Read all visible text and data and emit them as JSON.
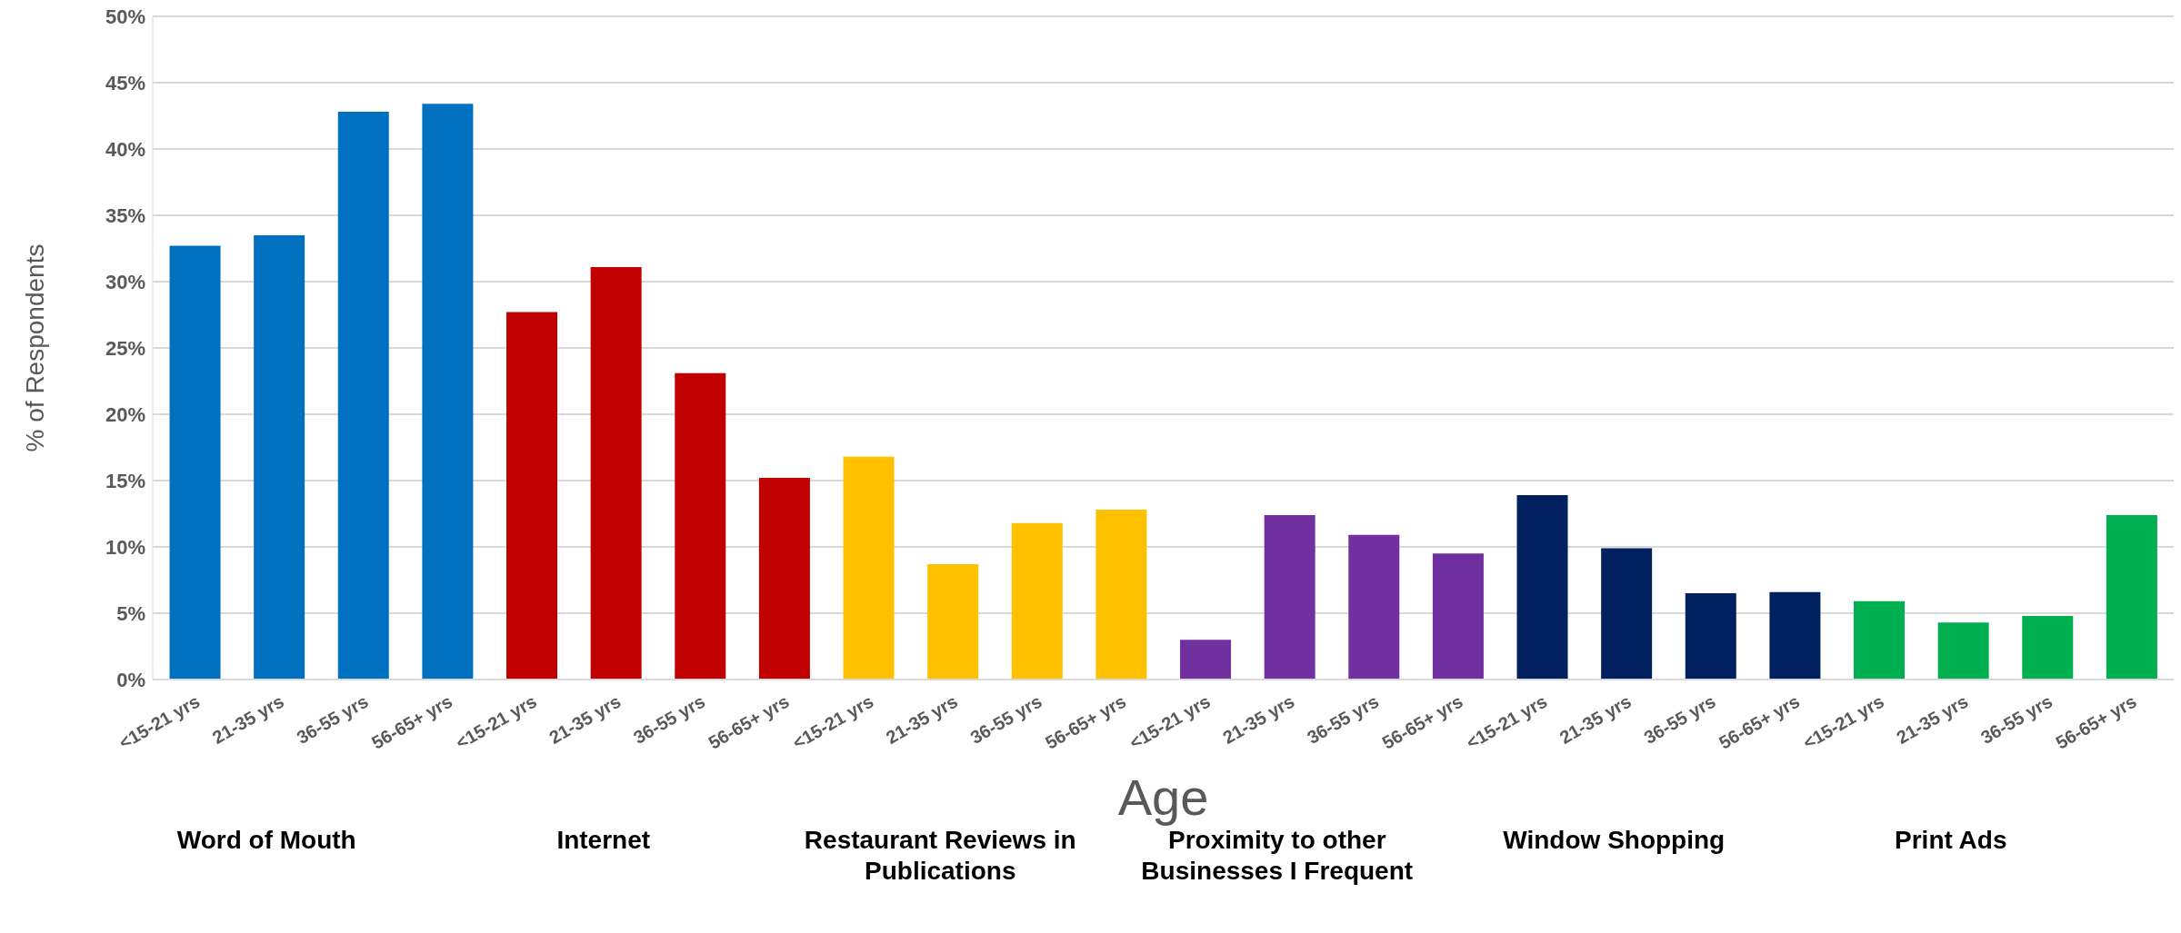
{
  "chart_data": {
    "type": "bar",
    "xlabel": "Age",
    "ylabel": "% of Respondents",
    "categories": [
      "<15-21 yrs",
      "21-35 yrs",
      "36-55 yrs",
      "56-65+ yrs",
      "<15-21 yrs",
      "21-35 yrs",
      "36-55 yrs",
      "56-65+ yrs",
      "<15-21 yrs",
      "21-35 yrs",
      "36-55 yrs",
      "56-65+ yrs",
      "<15-21 yrs",
      "21-35 yrs",
      "36-55 yrs",
      "56-65+ yrs",
      "<15-21 yrs",
      "21-35 yrs",
      "36-55 yrs",
      "56-65+ yrs",
      "<15-21 yrs",
      "21-35 yrs",
      "36-55 yrs",
      "56-65+ yrs"
    ],
    "values": [
      32.7,
      33.5,
      42.8,
      43.4,
      27.7,
      31.1,
      23.1,
      15.2,
      16.8,
      8.7,
      11.8,
      12.8,
      3.0,
      12.4,
      10.9,
      9.5,
      13.9,
      9.9,
      6.5,
      6.6,
      5.9,
      4.3,
      4.8,
      12.4
    ],
    "colors": [
      "#0070c0",
      "#0070c0",
      "#0070c0",
      "#0070c0",
      "#c00000",
      "#c00000",
      "#c00000",
      "#c00000",
      "#ffc000",
      "#ffc000",
      "#ffc000",
      "#ffc000",
      "#7030a0",
      "#7030a0",
      "#7030a0",
      "#7030a0",
      "#002060",
      "#002060",
      "#002060",
      "#002060",
      "#00b050",
      "#00b050",
      "#00b050",
      "#00b050"
    ],
    "ylim": [
      0,
      50
    ],
    "yticks": [
      {
        "value": 0,
        "label": "0%"
      },
      {
        "value": 5,
        "label": "5%"
      },
      {
        "value": 10,
        "label": "10%"
      },
      {
        "value": 15,
        "label": "15%"
      },
      {
        "value": 20,
        "label": "20%"
      },
      {
        "value": 25,
        "label": "25%"
      },
      {
        "value": 30,
        "label": "30%"
      },
      {
        "value": 35,
        "label": "35%"
      },
      {
        "value": 40,
        "label": "40%"
      },
      {
        "value": 45,
        "label": "45%"
      },
      {
        "value": 50,
        "label": "50%"
      }
    ],
    "grid": "y",
    "annotations": [
      "Word of Mouth",
      "Internet",
      "Restaurant Reviews in Publications",
      "Proximity to other Businesses I Frequent",
      "Window Shopping",
      "Print Ads"
    ]
  }
}
